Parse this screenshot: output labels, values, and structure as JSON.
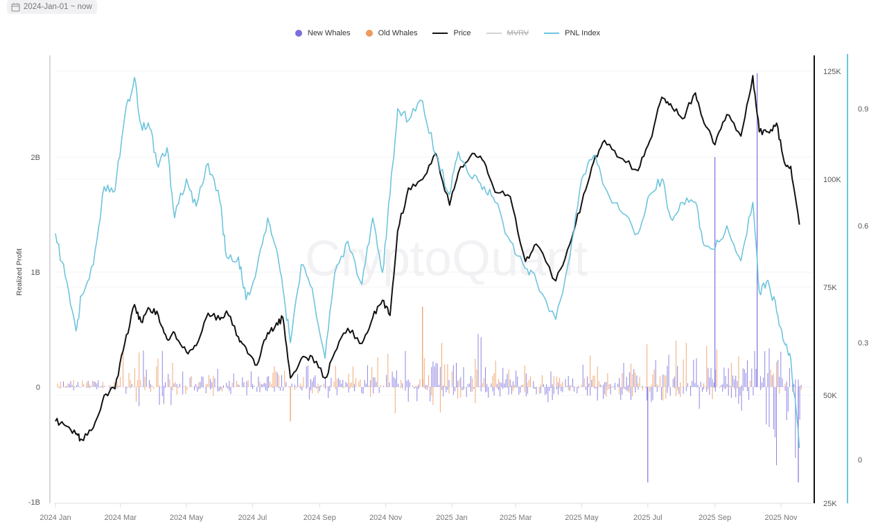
{
  "date_range": {
    "label": "2024-Jan-01 ~ now",
    "icon": "calendar-icon"
  },
  "legend": [
    {
      "label": "New Whales",
      "type": "dot",
      "color": "#7b6fde",
      "hidden": false
    },
    {
      "label": "Old Whales",
      "type": "dot",
      "color": "#ee9a5d",
      "hidden": false
    },
    {
      "label": "Price",
      "type": "line",
      "color": "#111111",
      "hidden": false
    },
    {
      "label": "MVRV",
      "type": "line",
      "color": "#cfcfcf",
      "hidden": true
    },
    {
      "label": "PNL Index",
      "type": "line",
      "color": "#6ec4dc",
      "hidden": false
    }
  ],
  "watermark": "CryptoQuant",
  "chart_data": {
    "type": "line",
    "title": "",
    "xlabel": "",
    "ylabel": "Realized Profit",
    "legend_position": "top",
    "grid": true,
    "x_ticks": [
      "2024 Jan",
      "2024 Mar",
      "2024 May",
      "2024 Jul",
      "2024 Sep",
      "2024 Nov",
      "2025 Jan",
      "2025 Mar",
      "2025 May",
      "2025 Jul",
      "2025 Sep",
      "2025 Nov"
    ],
    "axes": {
      "left": {
        "label": "Realized Profit",
        "ticks": [
          "2B",
          "1B",
          "0",
          "-1B"
        ],
        "range": [
          -1000000000,
          2000000000
        ]
      },
      "right_price": {
        "ticks": [
          "125K",
          "100K",
          "75K",
          "50K",
          "25K"
        ],
        "range": [
          25000,
          125000
        ]
      },
      "right_pnl": {
        "ticks": [
          "0.9",
          "0.6",
          "0.3",
          "0"
        ],
        "range": [
          0,
          0.9
        ]
      }
    },
    "series": [
      {
        "name": "Price",
        "axis": "right_price",
        "color": "#111111",
        "x": [
          "2024-01-01",
          "2024-01-10",
          "2024-01-20",
          "2024-01-25",
          "2024-02-05",
          "2024-02-15",
          "2024-02-25",
          "2024-03-05",
          "2024-03-14",
          "2024-03-20",
          "2024-03-28",
          "2024-04-05",
          "2024-04-13",
          "2024-04-20",
          "2024-05-01",
          "2024-05-10",
          "2024-05-21",
          "2024-06-01",
          "2024-06-07",
          "2024-06-18",
          "2024-06-25",
          "2024-07-05",
          "2024-07-15",
          "2024-07-22",
          "2024-07-29",
          "2024-08-05",
          "2024-08-15",
          "2024-08-25",
          "2024-09-06",
          "2024-09-15",
          "2024-09-27",
          "2024-10-10",
          "2024-10-20",
          "2024-10-29",
          "2024-11-05",
          "2024-11-12",
          "2024-11-22",
          "2024-12-05",
          "2024-12-17",
          "2024-12-30",
          "2025-01-07",
          "2025-01-20",
          "2025-01-31",
          "2025-02-10",
          "2025-02-24",
          "2025-03-10",
          "2025-03-20",
          "2025-04-07",
          "2025-04-20",
          "2025-05-01",
          "2025-05-12",
          "2025-05-22",
          "2025-06-05",
          "2025-06-22",
          "2025-07-03",
          "2025-07-14",
          "2025-07-22",
          "2025-08-02",
          "2025-08-14",
          "2025-08-22",
          "2025-09-01",
          "2025-09-12",
          "2025-09-25",
          "2025-10-06",
          "2025-10-12",
          "2025-10-20",
          "2025-10-28",
          "2025-11-04",
          "2025-11-10",
          "2025-11-18"
        ],
        "values": [
          44000,
          43000,
          41000,
          39800,
          42500,
          50000,
          51500,
          62000,
          71000,
          67000,
          70000,
          68500,
          63000,
          64500,
          60000,
          61500,
          69000,
          67500,
          69500,
          63500,
          61000,
          57000,
          64500,
          66000,
          68000,
          54000,
          58500,
          59000,
          54000,
          60000,
          65500,
          62000,
          68000,
          72000,
          68500,
          88000,
          98000,
          100000,
          106000,
          94000,
          101500,
          106000,
          104000,
          97000,
          96000,
          81000,
          85000,
          76500,
          85000,
          94500,
          104000,
          109000,
          105000,
          102000,
          109000,
          119000,
          117500,
          114000,
          120000,
          113000,
          108000,
          115000,
          110000,
          124000,
          111000,
          111000,
          113000,
          104000,
          103000,
          89500
        ]
      },
      {
        "name": "PNL Index",
        "axis": "right_pnl",
        "color": "#6ec4dc",
        "x": [
          "2024-01-01",
          "2024-01-10",
          "2024-01-20",
          "2024-01-25",
          "2024-02-05",
          "2024-02-15",
          "2024-02-25",
          "2024-03-05",
          "2024-03-14",
          "2024-03-20",
          "2024-03-28",
          "2024-04-05",
          "2024-04-13",
          "2024-04-20",
          "2024-05-01",
          "2024-05-10",
          "2024-05-21",
          "2024-06-01",
          "2024-06-07",
          "2024-06-18",
          "2024-06-25",
          "2024-07-05",
          "2024-07-15",
          "2024-07-22",
          "2024-07-29",
          "2024-08-05",
          "2024-08-15",
          "2024-08-25",
          "2024-09-06",
          "2024-09-15",
          "2024-09-27",
          "2024-10-10",
          "2024-10-20",
          "2024-10-29",
          "2024-11-05",
          "2024-11-12",
          "2024-11-22",
          "2024-12-05",
          "2024-12-17",
          "2024-12-30",
          "2025-01-07",
          "2025-01-20",
          "2025-01-31",
          "2025-02-10",
          "2025-02-24",
          "2025-03-10",
          "2025-03-20",
          "2025-04-07",
          "2025-04-20",
          "2025-05-01",
          "2025-05-12",
          "2025-05-22",
          "2025-06-05",
          "2025-06-22",
          "2025-07-03",
          "2025-07-14",
          "2025-07-22",
          "2025-08-02",
          "2025-08-14",
          "2025-08-22",
          "2025-09-01",
          "2025-09-12",
          "2025-09-25",
          "2025-10-06",
          "2025-10-12",
          "2025-10-20",
          "2025-10-28",
          "2025-11-04",
          "2025-11-10",
          "2025-11-18"
        ],
        "values": [
          0.58,
          0.47,
          0.33,
          0.42,
          0.5,
          0.7,
          0.69,
          0.88,
          0.98,
          0.86,
          0.85,
          0.75,
          0.8,
          0.62,
          0.72,
          0.65,
          0.76,
          0.66,
          0.52,
          0.52,
          0.41,
          0.49,
          0.62,
          0.55,
          0.44,
          0.3,
          0.5,
          0.44,
          0.26,
          0.48,
          0.56,
          0.45,
          0.62,
          0.48,
          0.68,
          0.9,
          0.87,
          0.92,
          0.78,
          0.68,
          0.79,
          0.72,
          0.7,
          0.66,
          0.56,
          0.49,
          0.46,
          0.36,
          0.52,
          0.72,
          0.78,
          0.7,
          0.64,
          0.58,
          0.68,
          0.72,
          0.62,
          0.66,
          0.66,
          0.55,
          0.54,
          0.6,
          0.51,
          0.66,
          0.43,
          0.46,
          0.38,
          0.3,
          0.26,
          0.03
        ]
      }
    ],
    "bars": {
      "name_new": "New Whales",
      "color_new": "#7b6fde",
      "name_old": "Old Whales",
      "color_old": "#ee9a5d",
      "notable_spikes": [
        {
          "date": "2025-09-01",
          "series": "New Whales",
          "value": 2000000000
        },
        {
          "date": "2025-10-10",
          "series": "New Whales",
          "value": 2730000000
        },
        {
          "date": "2025-07-01",
          "series": "New Whales",
          "value": -830000000
        },
        {
          "date": "2025-11-17",
          "series": "New Whales",
          "value": -830000000
        },
        {
          "date": "2024-08-05",
          "series": "Old Whales",
          "value": -300000000
        },
        {
          "date": "2024-12-05",
          "series": "Old Whales",
          "value": 700000000
        }
      ]
    }
  }
}
